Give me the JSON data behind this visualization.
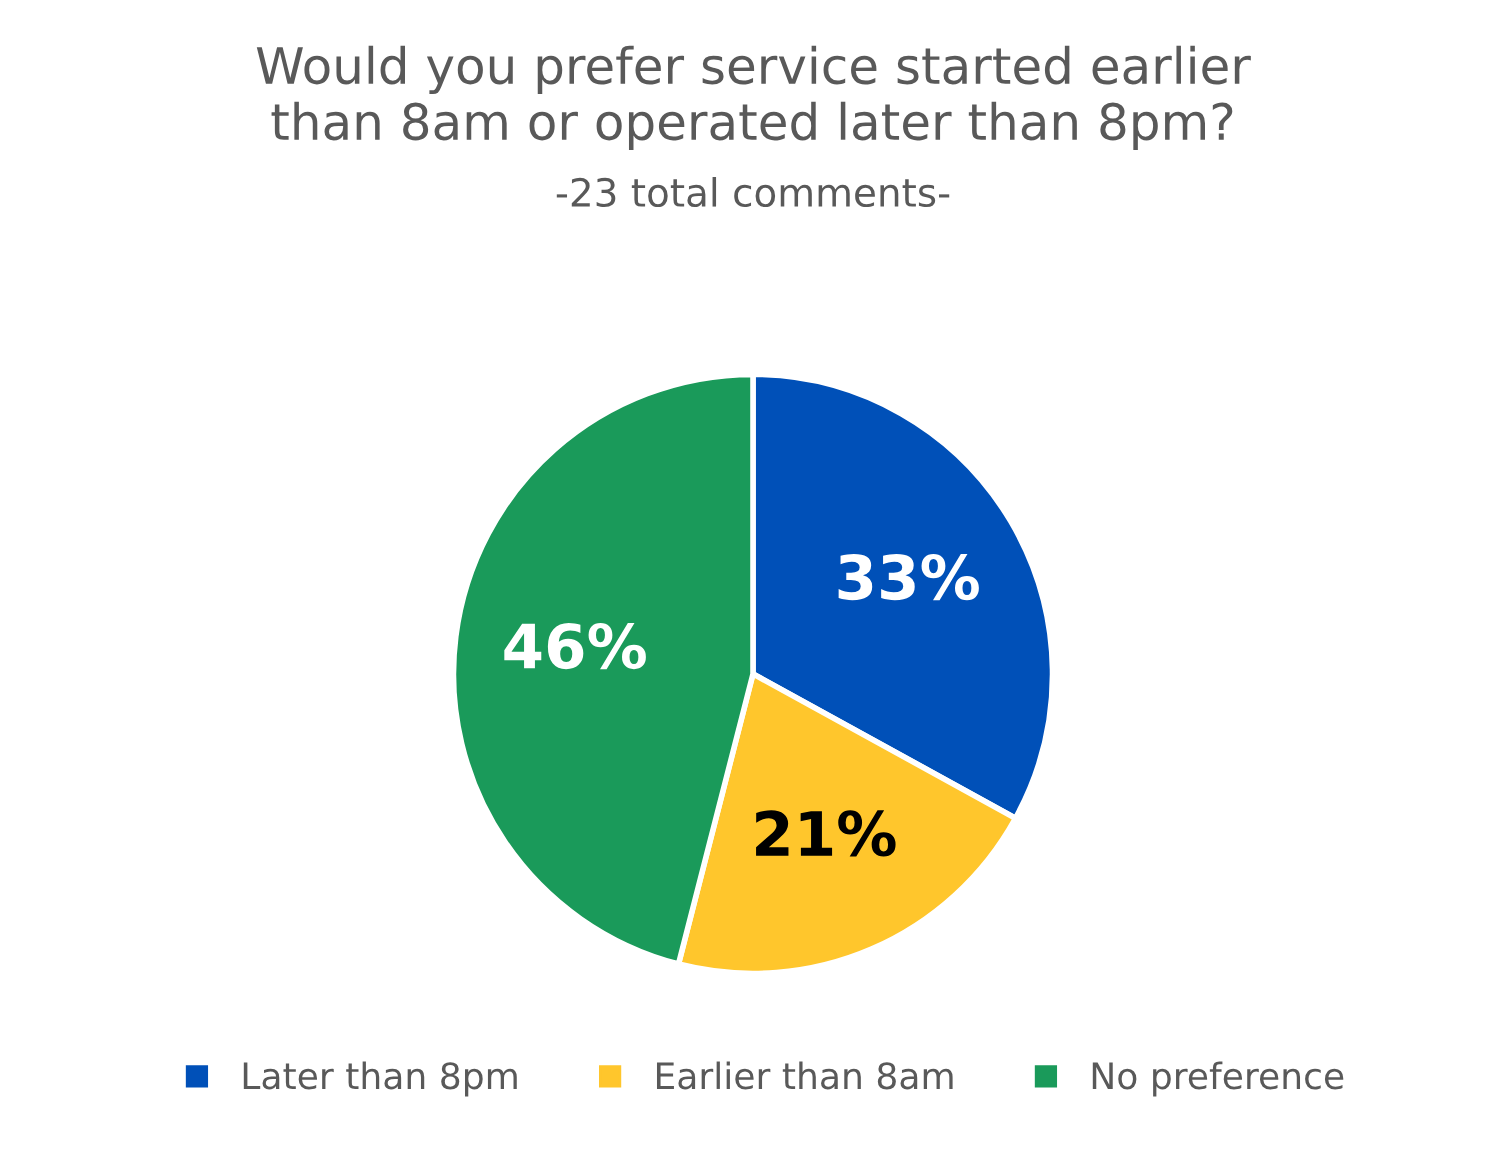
{
  "chart_data": {
    "type": "pie",
    "title": "Would you prefer service started earlier\nthan 8am or operated later than 8pm?",
    "subtitle": "-23 total comments-",
    "categories": [
      "Later than 8pm",
      "Earlier than 8am",
      "No preference"
    ],
    "values": [
      33,
      21,
      46
    ],
    "value_labels": [
      "33%",
      "21%",
      "46%"
    ],
    "colors": [
      "#0050b8",
      "#ffc62c",
      "#1a9a5a"
    ],
    "legend": "bottom"
  }
}
